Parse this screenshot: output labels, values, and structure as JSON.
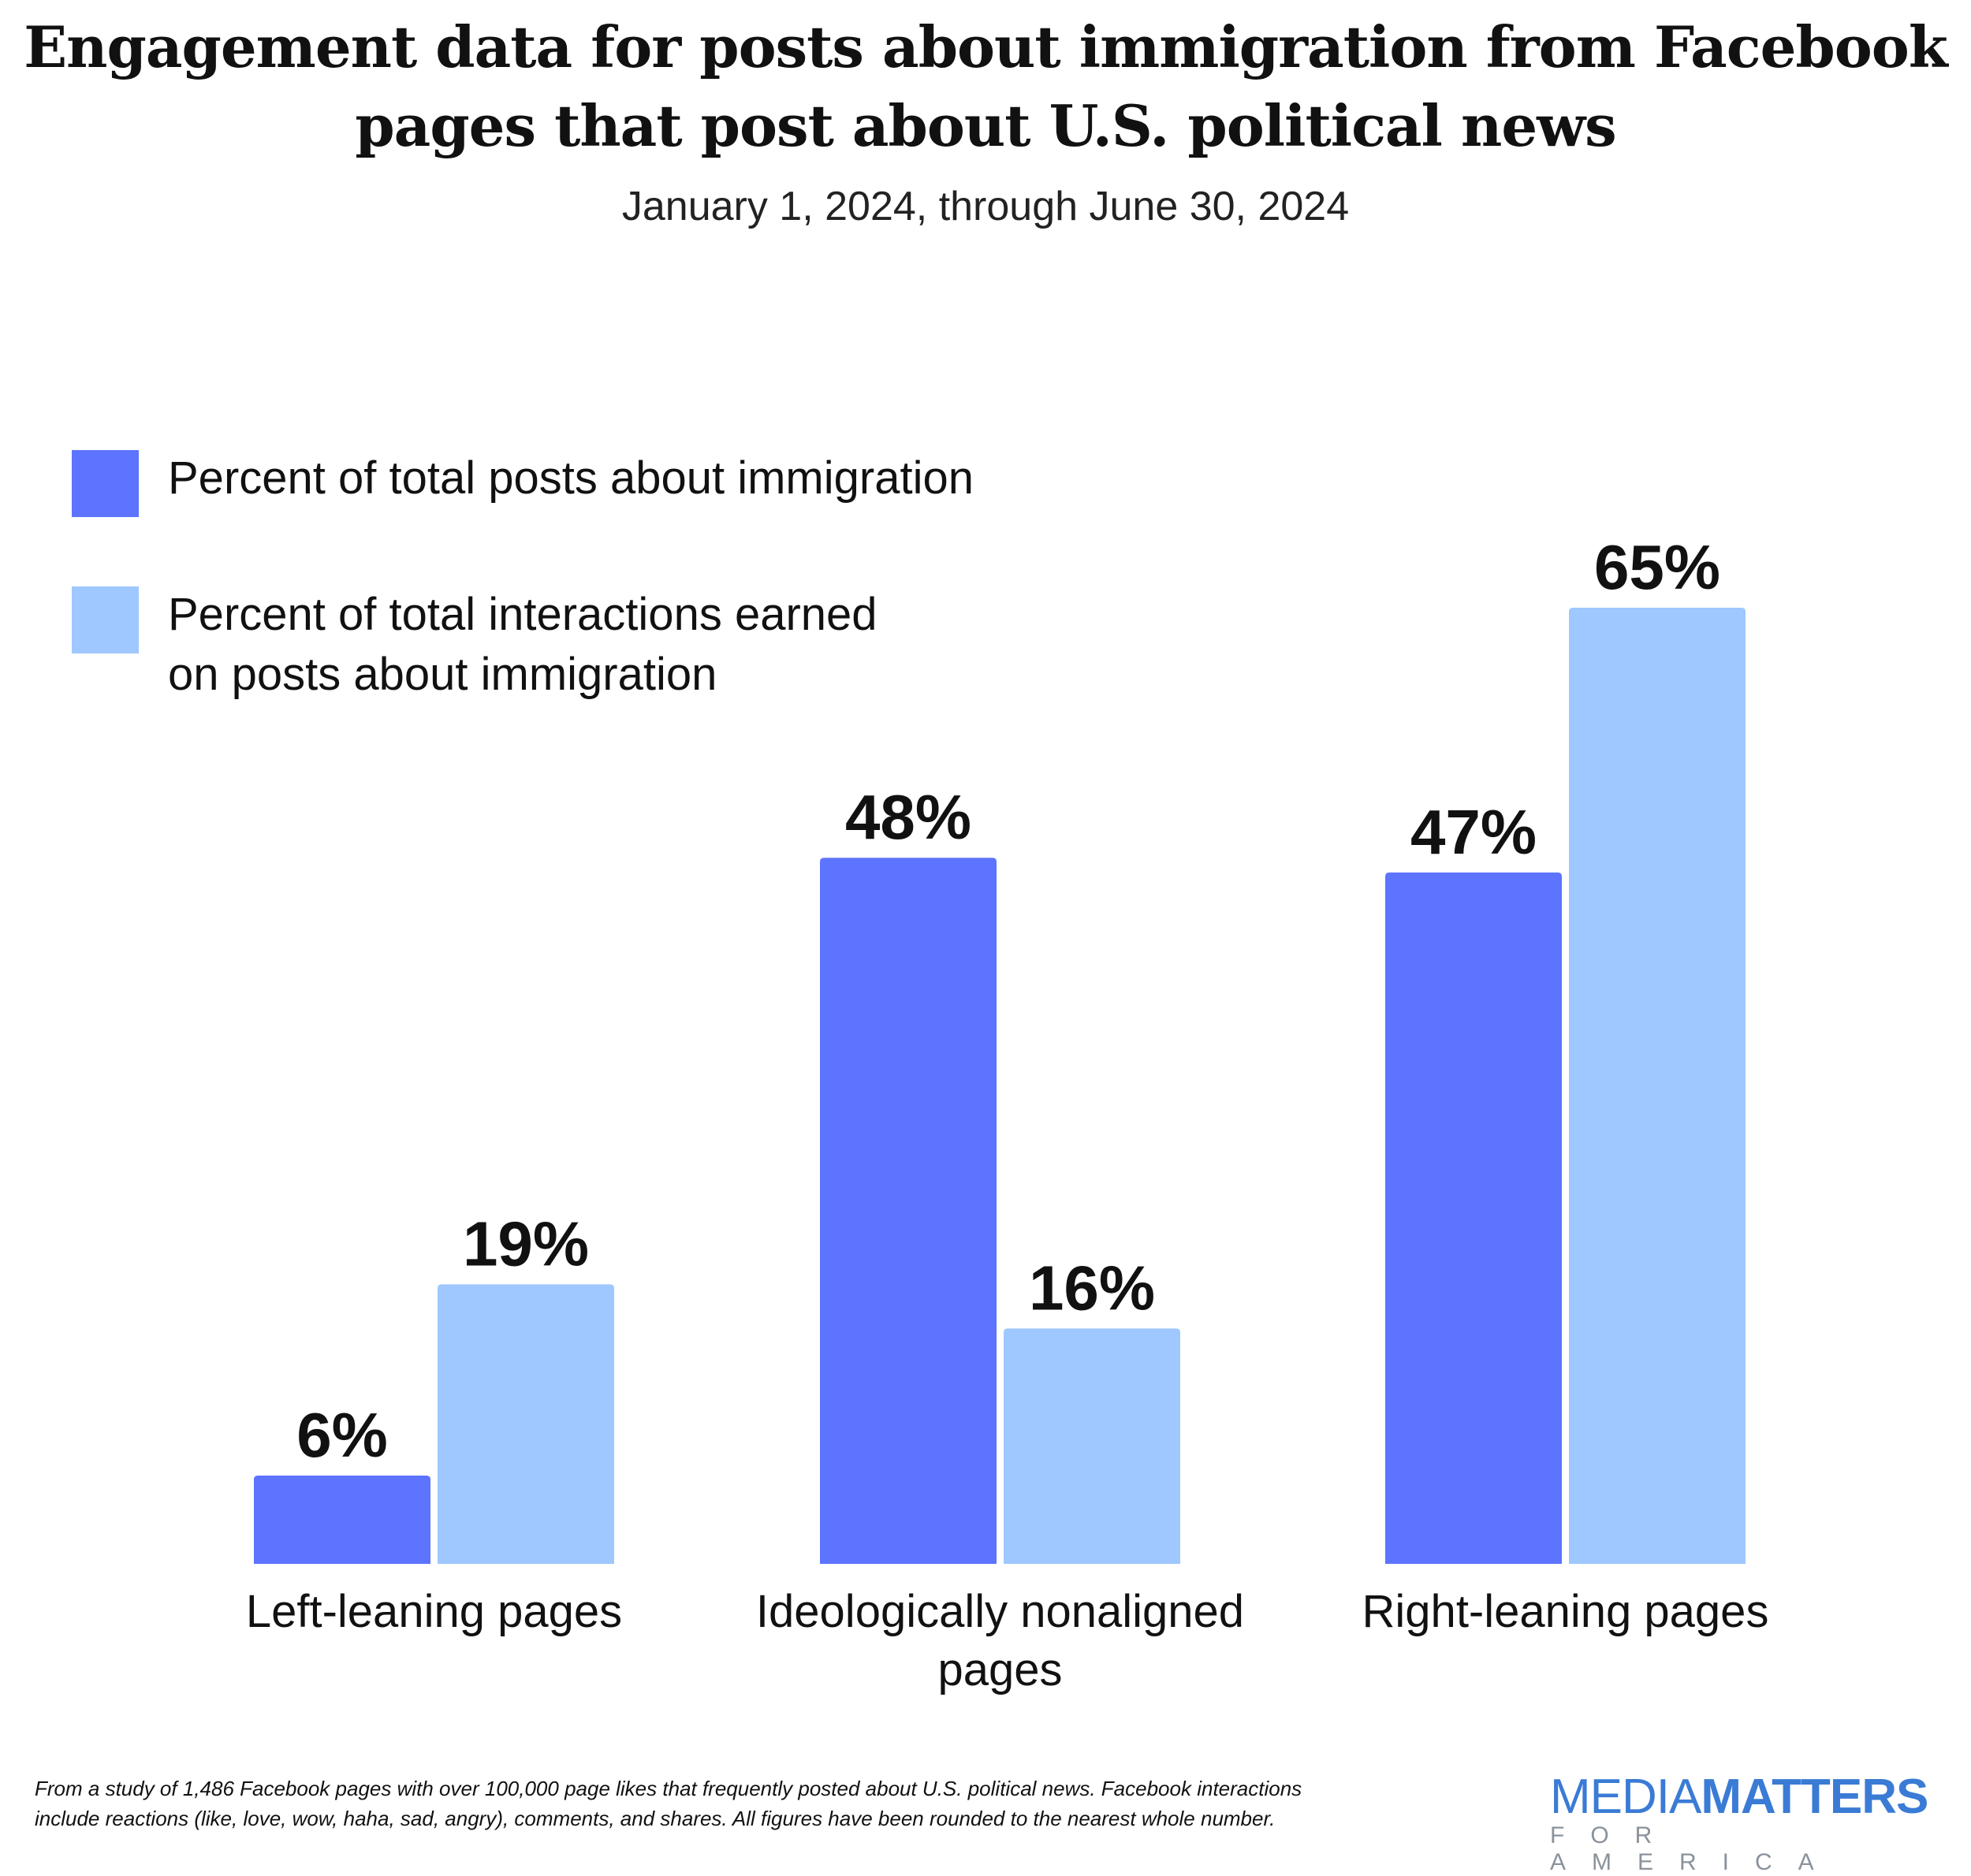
{
  "chart_data": {
    "type": "bar",
    "title": "Engagement data for posts about immigration from Facebook pages that post about U.S. political news",
    "title_lines": [
      "Engagement data for posts about immigration from Facebook",
      "pages that post about U.S. political news"
    ],
    "subtitle": "January 1, 2024, through June 30, 2024",
    "categories": [
      "Left-leaning pages",
      "Ideologically nonaligned pages",
      "Right-leaning pages"
    ],
    "category_lines": [
      [
        "Left-leaning pages"
      ],
      [
        "Ideologically nonaligned",
        "pages"
      ],
      [
        "Right-leaning pages"
      ]
    ],
    "series": [
      {
        "name": "Percent of total posts about immigration",
        "name_lines": [
          "Percent of total posts about immigration"
        ],
        "values": [
          6,
          48,
          47
        ],
        "labels": [
          "6%",
          "48%",
          "47%"
        ],
        "color": "#5c74ff"
      },
      {
        "name": "Percent of total interactions earned on posts about immigration",
        "name_lines": [
          "Percent of total interactions earned",
          "on posts about immigration"
        ],
        "values": [
          19,
          16,
          65
        ],
        "labels": [
          "19%",
          "16%",
          "65%"
        ],
        "color": "#9ec8ff"
      }
    ],
    "ylim": [
      0,
      65
    ],
    "grid": false,
    "legend_placement": "top-left",
    "xlabel": "",
    "ylabel": ""
  },
  "footnote": [
    "From a study of 1,486 Facebook pages with over 100,000 page likes that frequently posted about U.S. political news. Facebook interactions",
    "include reactions (like, love, wow, haha, sad, angry), comments, and shares. All figures have been rounded to the nearest whole number."
  ],
  "logo": {
    "part1": "MEDIA",
    "part2": "MATTERS",
    "sub": "FOR AMERICA",
    "color": "#3a7bd5"
  }
}
